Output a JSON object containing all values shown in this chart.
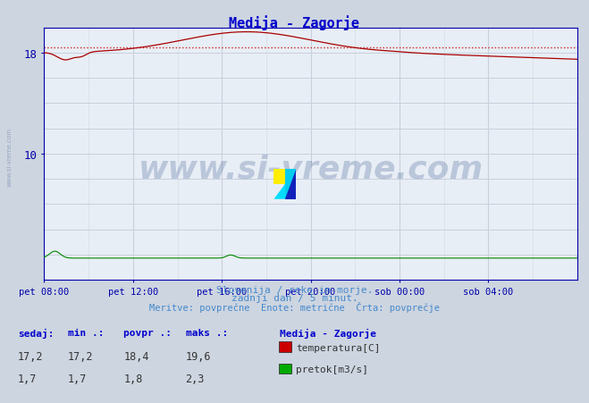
{
  "title": "Medija - Zagorje",
  "bg_color": "#cdd5e0",
  "plot_bg_color": "#e8eef5",
  "title_color": "#0000cc",
  "x_labels": [
    "pet 08:00",
    "pet 12:00",
    "pet 16:00",
    "pet 20:00",
    "sob 00:00",
    "sob 04:00"
  ],
  "x_ticks_norm": [
    0.0,
    0.1667,
    0.3333,
    0.5,
    0.6667,
    0.8333
  ],
  "ylim": [
    0,
    20
  ],
  "xlim": [
    0,
    1
  ],
  "temp_avg": 18.4,
  "temp_color": "#aa0000",
  "flow_color": "#008800",
  "avg_line_color": "#cc2222",
  "subtitle1": "Slovenija / reke in morje.",
  "subtitle2": "zadnji dan / 5 minut.",
  "subtitle3": "Meritve: povprečne  Enote: metrične  Črta: povprečje",
  "subtitle_color": "#4488cc",
  "legend_title": "Medija - Zagorje",
  "legend_items": [
    "temperatura[C]",
    "pretok[m3/s]"
  ],
  "legend_colors": [
    "#cc0000",
    "#00aa00"
  ],
  "stat_labels": [
    "sedaj:",
    "min .:",
    "povpr .:",
    "maks .:"
  ],
  "stat_temp": [
    17.2,
    17.2,
    18.4,
    19.6
  ],
  "stat_flow": [
    1.7,
    1.7,
    1.8,
    2.3
  ],
  "watermark": "www.si-vreme.com",
  "left_label": "www.si-vreme.com",
  "grid_color": "#c8d0de",
  "grid_color2": "#d8dee8",
  "axis_color": "#0000aa",
  "arrow_color": "#cc0000"
}
